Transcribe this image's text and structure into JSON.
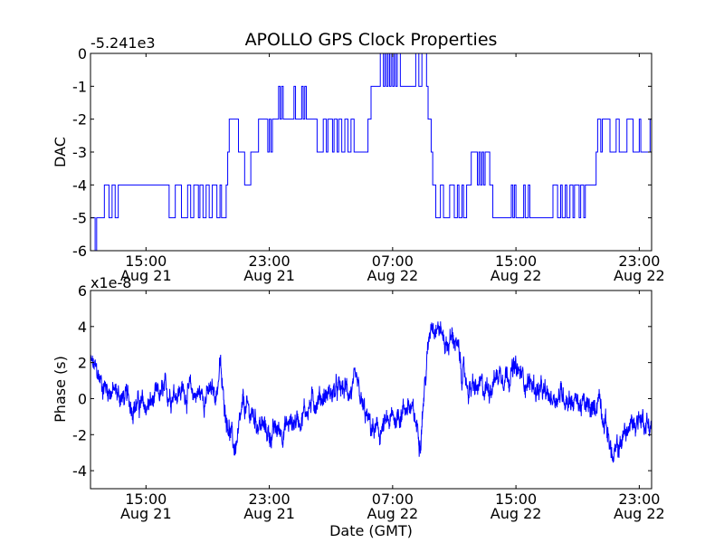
{
  "chart_data": {
    "title": "APOLLO GPS Clock Properties",
    "xlabel": "Date (GMT)",
    "line_color": "#0000ff",
    "x_ticks": [
      {
        "hours": 3,
        "time": "15:00",
        "date": "Aug 21"
      },
      {
        "hours": 11,
        "time": "23:00",
        "date": "Aug 21"
      },
      {
        "hours": 19,
        "time": "07:00",
        "date": "Aug 22"
      },
      {
        "hours": 27,
        "time": "15:00",
        "date": "Aug 22"
      },
      {
        "hours": 35,
        "time": "23:00",
        "date": "Aug 22"
      }
    ],
    "xlim_hours": [
      -0.6,
      35.8
    ],
    "subplots": [
      {
        "id": "dac",
        "type": "line",
        "ylabel": "DAC",
        "offset_label": "-5.241e3",
        "ylim": [
          -6,
          0
        ],
        "yticks": [
          {
            "v": 0,
            "label": "0"
          },
          {
            "v": -1,
            "label": "-1"
          },
          {
            "v": -2,
            "label": "-2"
          },
          {
            "v": -3,
            "label": "-3"
          },
          {
            "v": -4,
            "label": "-4"
          },
          {
            "v": -5,
            "label": "-5"
          },
          {
            "v": -6,
            "label": "-6"
          }
        ],
        "series": [
          {
            "name": "DAC",
            "step": true,
            "points": [
              [
                -0.6,
                -5
              ],
              [
                -0.3,
                -6
              ],
              [
                -0.2,
                -5
              ],
              [
                0.2,
                -5
              ],
              [
                0.3,
                -4
              ],
              [
                0.6,
                -5
              ],
              [
                0.8,
                -4
              ],
              [
                1.0,
                -5
              ],
              [
                1.2,
                -4
              ],
              [
                4.4,
                -4
              ],
              [
                4.5,
                -5
              ],
              [
                4.8,
                -5
              ],
              [
                4.9,
                -4
              ],
              [
                5.2,
                -4
              ],
              [
                5.3,
                -5
              ],
              [
                5.6,
                -5
              ],
              [
                5.7,
                -4
              ],
              [
                5.9,
                -5
              ],
              [
                6.1,
                -4
              ],
              [
                6.4,
                -5
              ],
              [
                6.5,
                -4
              ],
              [
                6.7,
                -5
              ],
              [
                6.9,
                -4
              ],
              [
                7.1,
                -5
              ],
              [
                7.3,
                -4
              ],
              [
                7.6,
                -5
              ],
              [
                7.8,
                -4
              ],
              [
                7.9,
                -5
              ],
              [
                8.2,
                -4
              ],
              [
                8.3,
                -3
              ],
              [
                8.4,
                -2
              ],
              [
                8.9,
                -2
              ],
              [
                9.0,
                -3
              ],
              [
                9.3,
                -3
              ],
              [
                9.4,
                -4
              ],
              [
                9.7,
                -4
              ],
              [
                9.8,
                -3
              ],
              [
                10.2,
                -3
              ],
              [
                10.3,
                -2
              ],
              [
                10.8,
                -2
              ],
              [
                10.9,
                -3
              ],
              [
                11.0,
                -2
              ],
              [
                11.1,
                -3
              ],
              [
                11.2,
                -2
              ],
              [
                11.5,
                -2
              ],
              [
                11.6,
                -1
              ],
              [
                11.7,
                -2
              ],
              [
                11.8,
                -1
              ],
              [
                11.9,
                -2
              ],
              [
                12.5,
                -2
              ],
              [
                12.6,
                -1
              ],
              [
                12.7,
                -2
              ],
              [
                13.0,
                -2
              ],
              [
                13.1,
                -1
              ],
              [
                13.2,
                -2
              ],
              [
                13.3,
                -1
              ],
              [
                13.4,
                -2
              ],
              [
                14.0,
                -2
              ],
              [
                14.1,
                -3
              ],
              [
                14.4,
                -3
              ],
              [
                14.5,
                -2
              ],
              [
                14.7,
                -3
              ],
              [
                14.8,
                -2
              ],
              [
                15.1,
                -3
              ],
              [
                15.2,
                -2
              ],
              [
                15.4,
                -3
              ],
              [
                15.5,
                -2
              ],
              [
                15.7,
                -3
              ],
              [
                15.9,
                -2
              ],
              [
                16.1,
                -3
              ],
              [
                16.3,
                -2
              ],
              [
                16.5,
                -3
              ],
              [
                17.3,
                -3
              ],
              [
                17.4,
                -2
              ],
              [
                17.6,
                -1
              ],
              [
                18.1,
                -1
              ],
              [
                18.2,
                0
              ],
              [
                18.4,
                -1
              ],
              [
                18.5,
                0
              ],
              [
                18.6,
                -1
              ],
              [
                18.7,
                0
              ],
              [
                18.8,
                -1
              ],
              [
                18.9,
                0
              ],
              [
                19.0,
                -1
              ],
              [
                19.1,
                0
              ],
              [
                19.2,
                -1
              ],
              [
                19.3,
                0
              ],
              [
                19.5,
                -1
              ],
              [
                20.4,
                -1
              ],
              [
                20.5,
                0
              ],
              [
                20.7,
                -1
              ],
              [
                20.9,
                0
              ],
              [
                21.2,
                -1
              ],
              [
                21.3,
                -2
              ],
              [
                21.5,
                -3
              ],
              [
                21.6,
                -4
              ],
              [
                21.8,
                -5
              ],
              [
                22.1,
                -4
              ],
              [
                22.3,
                -5
              ],
              [
                22.6,
                -5
              ],
              [
                22.7,
                -4
              ],
              [
                23.0,
                -5
              ],
              [
                23.2,
                -4
              ],
              [
                23.3,
                -5
              ],
              [
                23.5,
                -4
              ],
              [
                23.6,
                -5
              ],
              [
                23.8,
                -4
              ],
              [
                24.0,
                -4
              ],
              [
                24.1,
                -3
              ],
              [
                24.4,
                -3
              ],
              [
                24.5,
                -4
              ],
              [
                24.6,
                -3
              ],
              [
                24.7,
                -4
              ],
              [
                24.8,
                -3
              ],
              [
                24.9,
                -4
              ],
              [
                25.0,
                -3
              ],
              [
                25.3,
                -4
              ],
              [
                25.5,
                -5
              ],
              [
                26.6,
                -5
              ],
              [
                26.7,
                -4
              ],
              [
                26.8,
                -5
              ],
              [
                26.9,
                -4
              ],
              [
                27.0,
                -5
              ],
              [
                27.4,
                -5
              ],
              [
                27.5,
                -4
              ],
              [
                27.6,
                -5
              ],
              [
                27.8,
                -4
              ],
              [
                27.9,
                -5
              ],
              [
                29.3,
                -5
              ],
              [
                29.4,
                -4
              ],
              [
                29.7,
                -5
              ],
              [
                29.9,
                -4
              ],
              [
                30.0,
                -5
              ],
              [
                30.2,
                -4
              ],
              [
                30.3,
                -5
              ],
              [
                30.5,
                -4
              ],
              [
                30.7,
                -5
              ],
              [
                30.8,
                -4
              ],
              [
                31.1,
                -5
              ],
              [
                31.2,
                -4
              ],
              [
                31.4,
                -5
              ],
              [
                31.5,
                -4
              ],
              [
                32.1,
                -4
              ],
              [
                32.2,
                -3
              ],
              [
                32.3,
                -2
              ],
              [
                32.5,
                -3
              ],
              [
                32.6,
                -2
              ],
              [
                33.0,
                -2
              ],
              [
                33.1,
                -3
              ],
              [
                33.4,
                -3
              ],
              [
                33.5,
                -2
              ],
              [
                33.7,
                -3
              ],
              [
                34.1,
                -3
              ],
              [
                34.2,
                -2
              ],
              [
                34.5,
                -2
              ],
              [
                34.6,
                -3
              ],
              [
                34.9,
                -3
              ],
              [
                35.0,
                -2
              ],
              [
                35.1,
                -3
              ],
              [
                35.6,
                -3
              ],
              [
                35.7,
                -2
              ],
              [
                35.8,
                -2
              ]
            ]
          }
        ]
      },
      {
        "id": "phase",
        "type": "line",
        "ylabel": "Phase (s)",
        "offset_label": "x1e-8",
        "ylim": [
          -5,
          6
        ],
        "yticks": [
          {
            "v": 6,
            "label": "6"
          },
          {
            "v": 4,
            "label": "4"
          },
          {
            "v": 2,
            "label": "2"
          },
          {
            "v": 0,
            "label": "0"
          },
          {
            "v": -2,
            "label": "-2"
          },
          {
            "v": -4,
            "label": "-4"
          }
        ],
        "series": [
          {
            "name": "Phase",
            "noisy": true,
            "noise_amplitude": 0.55,
            "trend": [
              [
                -0.6,
                2.0
              ],
              [
                0.2,
                0.8
              ],
              [
                1.0,
                0.3
              ],
              [
                2.0,
                -0.2
              ],
              [
                3.0,
                -0.5
              ],
              [
                4.0,
                0.2
              ],
              [
                5.0,
                0.5
              ],
              [
                6.0,
                0.3
              ],
              [
                7.0,
                0.2
              ],
              [
                7.6,
                0.4
              ],
              [
                7.8,
                2.0
              ],
              [
                8.0,
                0.0
              ],
              [
                8.4,
                -1.5
              ],
              [
                8.7,
                -2.8
              ],
              [
                9.0,
                -2.2
              ],
              [
                9.3,
                -0.5
              ],
              [
                10.0,
                -1.0
              ],
              [
                11.0,
                -2.0
              ],
              [
                12.0,
                -1.6
              ],
              [
                13.0,
                -1.0
              ],
              [
                14.0,
                0.0
              ],
              [
                15.0,
                0.3
              ],
              [
                16.0,
                0.5
              ],
              [
                16.7,
                0.5
              ],
              [
                17.0,
                -0.5
              ],
              [
                17.5,
                -1.5
              ],
              [
                18.0,
                -2.0
              ],
              [
                19.0,
                -1.2
              ],
              [
                20.0,
                -0.3
              ],
              [
                20.8,
                -2.0
              ],
              [
                21.0,
                0.0
              ],
              [
                21.5,
                4.5
              ],
              [
                22.0,
                4.0
              ],
              [
                22.5,
                3.0
              ],
              [
                23.0,
                3.5
              ],
              [
                23.5,
                1.5
              ],
              [
                24.0,
                0.5
              ],
              [
                25.0,
                0.5
              ],
              [
                26.0,
                1.5
              ],
              [
                27.0,
                1.5
              ],
              [
                28.0,
                0.8
              ],
              [
                29.0,
                0.0
              ],
              [
                30.0,
                0.3
              ],
              [
                31.0,
                -0.2
              ],
              [
                32.0,
                -0.8
              ],
              [
                32.4,
                0.3
              ],
              [
                32.7,
                -1.0
              ],
              [
                33.0,
                -2.0
              ],
              [
                33.3,
                -3.5
              ],
              [
                34.0,
                -2.0
              ],
              [
                35.0,
                -1.0
              ],
              [
                35.8,
                -1.5
              ]
            ]
          }
        ]
      }
    ]
  }
}
